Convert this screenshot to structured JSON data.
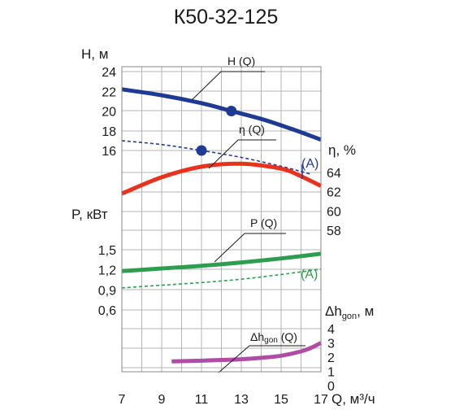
{
  "chart_data": {
    "type": "line",
    "title": "К50-32-125",
    "x": {
      "label": "Q, м³/ч",
      "ticks": [
        "7",
        "9",
        "11",
        "13",
        "15",
        "17"
      ],
      "range": [
        7,
        17
      ]
    },
    "grid": true,
    "axes": {
      "H": {
        "label": "H, м",
        "ticks": [
          "16",
          "18",
          "20",
          "22",
          "24"
        ]
      },
      "eta": {
        "label": "η, %",
        "ticks": [
          "58",
          "60",
          "62",
          "64"
        ]
      },
      "P": {
        "label": "P, кВт",
        "ticks": [
          "0,6",
          "0,9",
          "1,2",
          "1,5"
        ]
      },
      "dh": {
        "label_main": "Δh",
        "label_sub": "gon",
        "label_unit": ", м",
        "ticks": [
          "0",
          "1",
          "2",
          "3",
          "4"
        ]
      }
    },
    "series": [
      {
        "key": "H",
        "name": "H (Q)",
        "axis": "H",
        "color": "#1f3a93",
        "style": "solid",
        "x": [
          7,
          9,
          11,
          12.5,
          14,
          15.5,
          17
        ],
        "y": [
          22.2,
          21.6,
          20.8,
          20.0,
          19.2,
          18.2,
          17.1
        ]
      },
      {
        "key": "H_A",
        "name": "(A)",
        "axis": "H",
        "color": "#1f3a93",
        "style": "dashed",
        "x": [
          7,
          9,
          11,
          13,
          15,
          16.5
        ],
        "y": [
          17.0,
          16.6,
          16.0,
          15.3,
          14.4,
          13.6
        ]
      },
      {
        "key": "eta",
        "name": "η (Q)",
        "axis": "eta",
        "color": "#e8321e",
        "style": "solid",
        "x": [
          7,
          9,
          11,
          13,
          15,
          16,
          17
        ],
        "y": [
          61.8,
          63.5,
          64.6,
          64.9,
          64.4,
          63.6,
          62.6
        ]
      },
      {
        "key": "P",
        "name": "P (Q)",
        "axis": "P",
        "color": "#2d9e4f",
        "style": "solid",
        "x": [
          7,
          9,
          11,
          13,
          15,
          17
        ],
        "y": [
          1.18,
          1.22,
          1.26,
          1.31,
          1.37,
          1.44
        ]
      },
      {
        "key": "P_A",
        "name": "(A)",
        "axis": "P",
        "color": "#2d9e4f",
        "style": "dashed",
        "x": [
          7,
          9,
          11,
          13,
          15,
          17
        ],
        "y": [
          0.93,
          0.97,
          1.01,
          1.06,
          1.13,
          1.21
        ]
      },
      {
        "key": "dh",
        "name": "Δh gon (Q)",
        "axis": "dh",
        "color": "#b04ca6",
        "style": "solid",
        "x": [
          9.5,
          11,
          12,
          13,
          14,
          15,
          16,
          16.5,
          17
        ],
        "y": [
          1.7,
          1.75,
          1.8,
          1.85,
          1.95,
          2.1,
          2.4,
          2.65,
          3.0
        ]
      }
    ],
    "points": [
      {
        "series": "H",
        "x": 12.5,
        "y": 20.0
      },
      {
        "series": "H_A",
        "x": 11,
        "y": 16.0
      }
    ]
  },
  "labels": {
    "HQ": "H (Q)",
    "etaQ": "η (Q)",
    "PQ": "P (Q)",
    "dhQ_main": "Δh",
    "dhQ_sub": "gon",
    "dhQ_end": " (Q)",
    "A_eta": "(A)",
    "A_P": "(A)"
  }
}
